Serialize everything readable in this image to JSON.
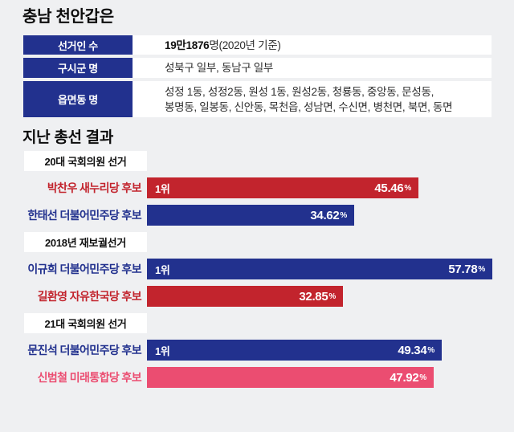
{
  "page": {
    "title": "충남 천안갑은",
    "background": "#eff0f2"
  },
  "colors": {
    "navy": "#22318e",
    "red": "#c2242d",
    "pink": "#eb4d71",
    "row_bg": "#ffffff"
  },
  "info_table": {
    "rows": [
      {
        "label": "선거인 수",
        "value_bold": "19만1876",
        "value_rest": "명(2020년 기준)"
      },
      {
        "label": "구시군 명",
        "value": "성북구 일부, 동남구 일부"
      },
      {
        "label": "읍면동 명",
        "line1": "성정 1동, 성정2동, 원성 1동, 원성2동, 청룡동, 중앙동, 문성동,",
        "line2": "봉명동, 일봉동, 신안동, 목천읍, 성남면, 수신면, 병천면, 북면, 동면"
      }
    ]
  },
  "results": {
    "title": "지난 총선 결과",
    "percent_sign": "%",
    "groups": [
      {
        "label": "20대 국회의원 선거",
        "bars": [
          {
            "candidate": "박찬우 새누리당 후보",
            "party_color": "#c2242d",
            "value": 45.46,
            "display": "45.46",
            "rank": "1위"
          },
          {
            "candidate": "한태선 더불어민주당 후보",
            "party_color": "#22318e",
            "value": 34.62,
            "display": "34.62",
            "rank": ""
          }
        ]
      },
      {
        "label": "2018년 재보궐선거",
        "bars": [
          {
            "candidate": "이규희 더불어민주당 후보",
            "party_color": "#22318e",
            "value": 57.78,
            "display": "57.78",
            "rank": "1위"
          },
          {
            "candidate": "길환영 자유한국당 후보",
            "party_color": "#c2242d",
            "value": 32.85,
            "display": "32.85",
            "rank": ""
          }
        ]
      },
      {
        "label": "21대 국회의원 선거",
        "bars": [
          {
            "candidate": "문진석 더불어민주당 후보",
            "party_color": "#22318e",
            "value": 49.34,
            "display": "49.34",
            "rank": "1위"
          },
          {
            "candidate": "신범철 미래통합당 후보",
            "party_color": "#eb4d71",
            "value": 47.92,
            "display": "47.92",
            "rank": ""
          }
        ]
      }
    ]
  },
  "chart_data": [
    {
      "type": "bar",
      "orientation": "horizontal",
      "title": "20대 국회의원 선거",
      "categories": [
        "박찬우 새누리당 후보",
        "한태선 더불어민주당 후보"
      ],
      "values": [
        45.46,
        34.62
      ],
      "unit": "%",
      "bar_colors": [
        "#c2242d",
        "#22318e"
      ],
      "annotations": [
        "1위",
        ""
      ],
      "xlim": [
        0,
        61.4
      ],
      "grid": false,
      "legend": false
    },
    {
      "type": "bar",
      "orientation": "horizontal",
      "title": "2018년 재보궐선거",
      "categories": [
        "이규희 더불어민주당 후보",
        "길환영 자유한국당 후보"
      ],
      "values": [
        57.78,
        32.85
      ],
      "unit": "%",
      "bar_colors": [
        "#22318e",
        "#c2242d"
      ],
      "annotations": [
        "1위",
        ""
      ],
      "xlim": [
        0,
        61.4
      ],
      "grid": false,
      "legend": false
    },
    {
      "type": "bar",
      "orientation": "horizontal",
      "title": "21대 국회의원 선거",
      "categories": [
        "문진석 더불어민주당 후보",
        "신범철 미래통합당 후보"
      ],
      "values": [
        49.34,
        47.92
      ],
      "unit": "%",
      "bar_colors": [
        "#22318e",
        "#eb4d71"
      ],
      "annotations": [
        "1위",
        ""
      ],
      "xlim": [
        0,
        61.4
      ],
      "grid": false,
      "legend": false
    }
  ]
}
